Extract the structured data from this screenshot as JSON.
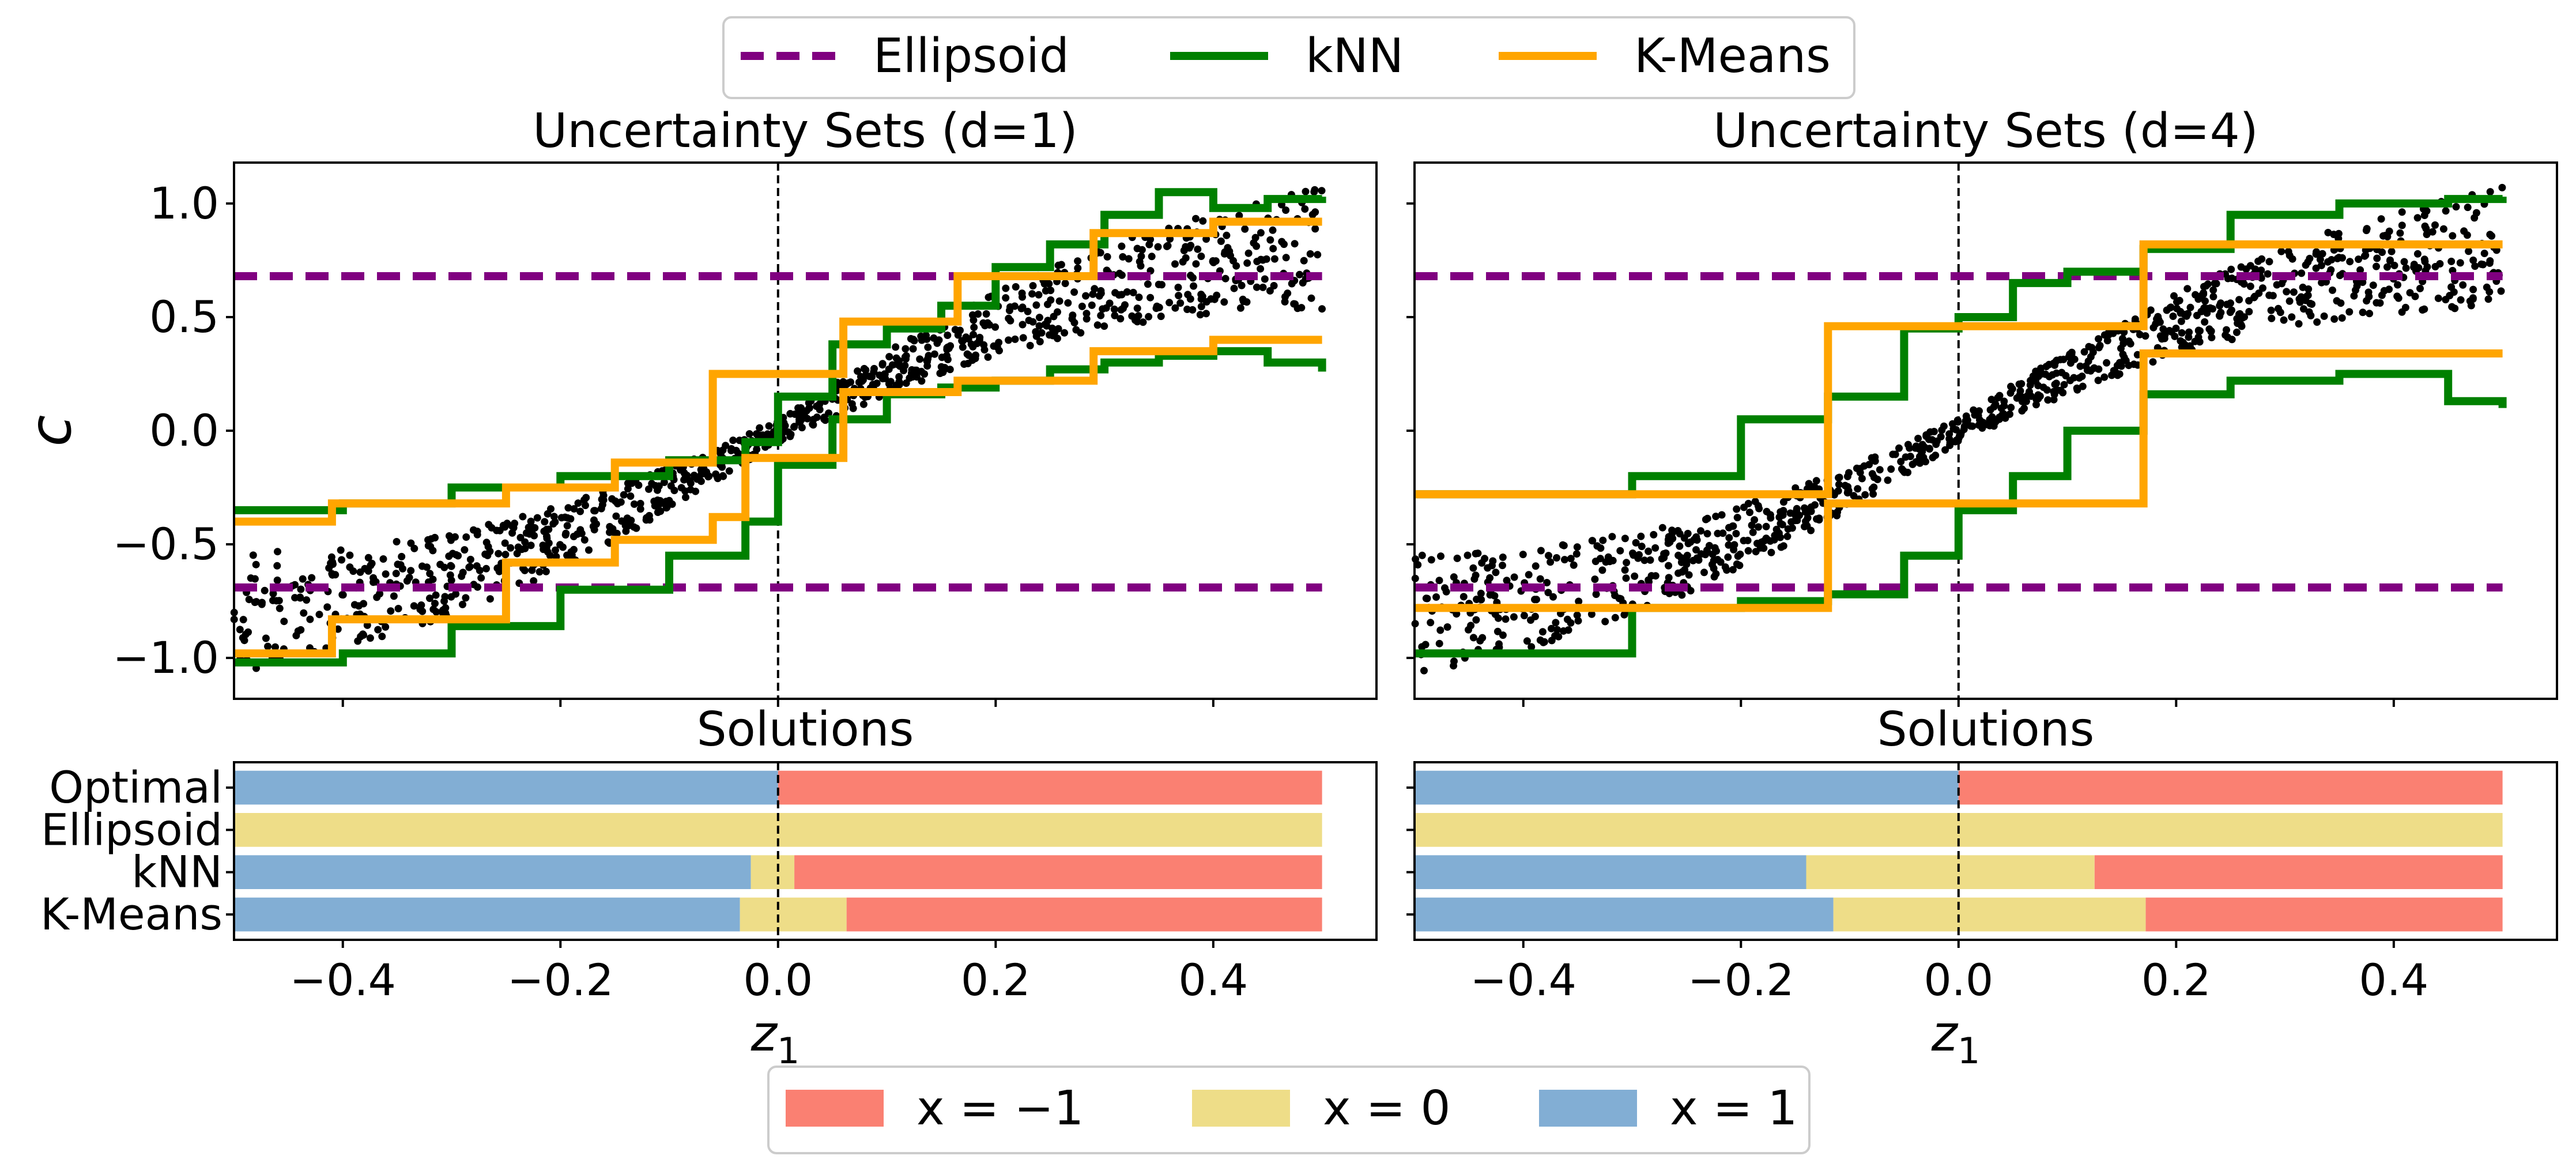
{
  "colors": {
    "ellipsoid": "#800080",
    "knn": "#008000",
    "kmeans": "#FFA500",
    "x_neg1": "#FA8072",
    "x_0": "#EEDD88",
    "x_1": "#82AED4",
    "points": "#000000"
  },
  "top_legend": {
    "placement": "top-center",
    "items": [
      {
        "label": "Ellipsoid",
        "color": "#800080",
        "style": "dashed"
      },
      {
        "label": "kNN",
        "color": "#008000",
        "style": "solid"
      },
      {
        "label": "K-Means",
        "color": "#FFA500",
        "style": "solid"
      }
    ]
  },
  "bottom_legend": {
    "placement": "bottom-center",
    "items": [
      {
        "label": "x = −1",
        "color": "#FA8072"
      },
      {
        "label": "x = 0",
        "color": "#EEDD88"
      },
      {
        "label": "x = 1",
        "color": "#82AED4"
      }
    ]
  },
  "chart_data": [
    {
      "type": "line",
      "title": "Uncertainty Sets (d=1)",
      "ylabel": "c",
      "xlim": [
        -0.5,
        0.55
      ],
      "ylim": [
        -1.18,
        1.18
      ],
      "yticks": [
        -1.0,
        -0.5,
        0.0,
        0.5,
        1.0
      ],
      "ytick_labels": [
        "−1.0",
        "−0.5",
        "0.0",
        "0.5",
        "1.0"
      ],
      "vline_x": 0.0,
      "scatter_band": {
        "z_range": [
          -0.5,
          0.5
        ],
        "center_slope": 1.2,
        "center_amp": 0.9,
        "half_width_min": 0.05,
        "half_width_max": 0.27,
        "count": 1000
      },
      "series": [
        {
          "name": "Ellipsoid",
          "style": "dashed",
          "x": [
            -0.5,
            0.5
          ],
          "upper": [
            0.68,
            0.68
          ],
          "lower": [
            -0.69,
            -0.69
          ]
        },
        {
          "name": "kNN",
          "style": "solid",
          "x": [
            -0.5,
            -0.4,
            -0.3,
            -0.2,
            -0.1,
            -0.03,
            0.0,
            0.05,
            0.1,
            0.15,
            0.2,
            0.25,
            0.3,
            0.35,
            0.4,
            0.45,
            0.5
          ],
          "upper": [
            -0.35,
            -0.32,
            -0.25,
            -0.2,
            -0.13,
            -0.05,
            0.15,
            0.38,
            0.45,
            0.55,
            0.72,
            0.82,
            0.95,
            1.05,
            0.98,
            1.02,
            1.03
          ],
          "lower": [
            -1.02,
            -0.98,
            -0.86,
            -0.7,
            -0.55,
            -0.4,
            -0.15,
            0.05,
            0.16,
            0.19,
            0.22,
            0.27,
            0.3,
            0.33,
            0.35,
            0.3,
            0.26
          ]
        },
        {
          "name": "K-Means",
          "style": "solid",
          "x": [
            -0.5,
            -0.41,
            -0.35,
            -0.25,
            -0.2,
            -0.15,
            -0.1,
            -0.06,
            -0.03,
            0.0,
            0.03,
            0.06,
            0.1,
            0.165,
            0.29,
            0.4,
            0.5
          ],
          "upper": [
            -0.4,
            -0.32,
            -0.32,
            -0.25,
            -0.25,
            -0.14,
            -0.14,
            0.25,
            0.25,
            0.25,
            0.25,
            0.48,
            0.48,
            0.68,
            0.87,
            0.92,
            0.92
          ],
          "lower": [
            -0.98,
            -0.83,
            -0.83,
            -0.58,
            -0.58,
            -0.48,
            -0.48,
            -0.38,
            -0.12,
            -0.12,
            -0.12,
            0.17,
            0.17,
            0.22,
            0.35,
            0.4,
            0.4
          ]
        }
      ]
    },
    {
      "type": "line",
      "title": "Uncertainty Sets (d=4)",
      "ylabel": "",
      "xlim": [
        -0.5,
        0.55
      ],
      "ylim": [
        -1.18,
        1.18
      ],
      "yticks": [
        -1.0,
        -0.5,
        0.0,
        0.5,
        1.0
      ],
      "vline_x": 0.0,
      "scatter_band": {
        "z_range": [
          -0.5,
          0.5
        ],
        "center_slope": 1.2,
        "center_amp": 0.9,
        "half_width_min": 0.05,
        "half_width_max": 0.27,
        "count": 1000
      },
      "series": [
        {
          "name": "Ellipsoid",
          "style": "dashed",
          "x": [
            -0.5,
            0.5
          ],
          "upper": [
            0.68,
            0.68
          ],
          "lower": [
            -0.69,
            -0.69
          ]
        },
        {
          "name": "kNN",
          "style": "solid",
          "x": [
            -0.5,
            -0.3,
            -0.2,
            -0.12,
            -0.05,
            0.0,
            0.05,
            0.1,
            0.17,
            0.25,
            0.35,
            0.45,
            0.5
          ],
          "upper": [
            -0.28,
            -0.2,
            0.05,
            0.15,
            0.45,
            0.5,
            0.65,
            0.7,
            0.8,
            0.95,
            1.0,
            1.02,
            1.03
          ],
          "lower": [
            -0.98,
            -0.78,
            -0.75,
            -0.72,
            -0.55,
            -0.35,
            -0.2,
            0.0,
            0.16,
            0.22,
            0.25,
            0.13,
            0.1
          ]
        },
        {
          "name": "K-Means",
          "style": "solid",
          "x": [
            -0.5,
            -0.12,
            -0.12,
            0.17,
            0.17,
            0.5
          ],
          "upper": [
            -0.28,
            -0.28,
            0.46,
            0.46,
            0.82,
            0.82
          ],
          "lower": [
            -0.78,
            -0.78,
            -0.32,
            -0.32,
            0.34,
            0.34
          ]
        }
      ]
    },
    {
      "type": "bar",
      "title": "Solutions",
      "categories": [
        "Optimal",
        "Ellipsoid",
        "kNN",
        "K-Means"
      ],
      "xlim": [
        -0.5,
        0.55
      ],
      "xticks": [
        -0.4,
        -0.2,
        0.0,
        0.2,
        0.4
      ],
      "xtick_labels": [
        "−0.4",
        "−0.2",
        "0.0",
        "0.2",
        "0.4"
      ],
      "xlabel": "z",
      "xlabel_sub": "1",
      "vline_x": 0.0,
      "rows": [
        {
          "name": "Optimal",
          "segments": [
            {
              "x": 1,
              "from": -0.5,
              "to": 0.0
            },
            {
              "x": -1,
              "from": 0.0,
              "to": 0.5
            }
          ]
        },
        {
          "name": "Ellipsoid",
          "segments": [
            {
              "x": 0,
              "from": -0.5,
              "to": 0.5
            }
          ]
        },
        {
          "name": "kNN",
          "segments": [
            {
              "x": 1,
              "from": -0.5,
              "to": -0.025
            },
            {
              "x": 0,
              "from": -0.025,
              "to": 0.015
            },
            {
              "x": -1,
              "from": 0.015,
              "to": 0.5
            }
          ]
        },
        {
          "name": "K-Means",
          "segments": [
            {
              "x": 1,
              "from": -0.5,
              "to": -0.035
            },
            {
              "x": 0,
              "from": -0.035,
              "to": 0.063
            },
            {
              "x": -1,
              "from": 0.063,
              "to": 0.5
            }
          ]
        }
      ]
    },
    {
      "type": "bar",
      "title": "Solutions",
      "categories": [
        "Optimal",
        "Ellipsoid",
        "kNN",
        "K-Means"
      ],
      "xlim": [
        -0.5,
        0.55
      ],
      "xticks": [
        -0.4,
        -0.2,
        0.0,
        0.2,
        0.4
      ],
      "xtick_labels": [
        "−0.4",
        "−0.2",
        "0.0",
        "0.2",
        "0.4"
      ],
      "xlabel": "z",
      "xlabel_sub": "1",
      "vline_x": 0.0,
      "rows": [
        {
          "name": "Optimal",
          "segments": [
            {
              "x": 1,
              "from": -0.5,
              "to": 0.0
            },
            {
              "x": -1,
              "from": 0.0,
              "to": 0.5
            }
          ]
        },
        {
          "name": "Ellipsoid",
          "segments": [
            {
              "x": 0,
              "from": -0.5,
              "to": 0.5
            }
          ]
        },
        {
          "name": "kNN",
          "segments": [
            {
              "x": 1,
              "from": -0.5,
              "to": -0.14
            },
            {
              "x": 0,
              "from": -0.14,
              "to": 0.125
            },
            {
              "x": -1,
              "from": 0.125,
              "to": 0.5
            }
          ]
        },
        {
          "name": "K-Means",
          "segments": [
            {
              "x": 1,
              "from": -0.5,
              "to": -0.115
            },
            {
              "x": 0,
              "from": -0.115,
              "to": 0.172
            },
            {
              "x": -1,
              "from": 0.172,
              "to": 0.5
            }
          ]
        }
      ]
    }
  ]
}
